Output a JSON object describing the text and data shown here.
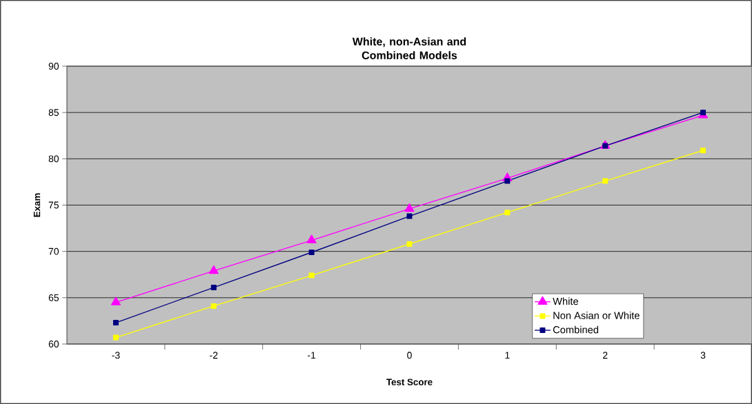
{
  "chart_data": {
    "type": "line",
    "title": "White, non-Asian and Combined Models",
    "xlabel": "Test Score",
    "ylabel": "Exam",
    "categories": [
      "-3",
      "-2",
      "-1",
      "0",
      "1",
      "2",
      "3"
    ],
    "series": [
      {
        "name": "White",
        "color": "#ff00ff",
        "marker": "triangle",
        "values": [
          64.5,
          67.9,
          71.2,
          74.6,
          77.9,
          81.4,
          84.7
        ]
      },
      {
        "name": "Non Asian or White",
        "color": "#ffff00",
        "marker": "square",
        "values": [
          60.7,
          64.1,
          67.4,
          70.8,
          74.2,
          77.6,
          80.9
        ]
      },
      {
        "name": "Combined",
        "color": "#000080",
        "marker": "square",
        "values": [
          62.3,
          66.1,
          69.9,
          73.8,
          77.6,
          81.4,
          85.0
        ]
      }
    ],
    "ylim": [
      60,
      90
    ],
    "yticks": [
      60,
      65,
      70,
      75,
      80,
      85,
      90
    ],
    "grid": "y",
    "legend": "bottom right",
    "line_style": "solid"
  }
}
